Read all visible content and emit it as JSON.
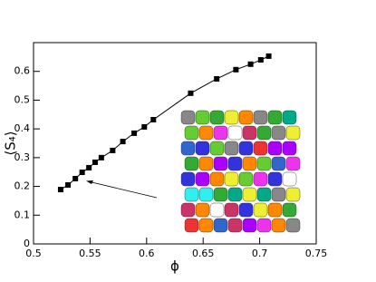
{
  "chart_data": {
    "type": "line",
    "x_label": "ϕ",
    "y_label": "⟨S₄⟩",
    "x": [
      0.524,
      0.5305,
      0.537,
      0.543,
      0.549,
      0.5545,
      0.56,
      0.57,
      0.579,
      0.589,
      0.598,
      0.606,
      0.639,
      0.662,
      0.679,
      0.692,
      0.701,
      0.708
    ],
    "series": [
      {
        "color": "#000000",
        "values": [
          0.189,
          0.205,
          0.227,
          0.249,
          0.265,
          0.284,
          0.3,
          0.325,
          0.356,
          0.385,
          0.407,
          0.432,
          0.524,
          0.574,
          0.606,
          0.625,
          0.64,
          0.653
        ]
      }
    ],
    "xlim": [
      0.5,
      0.75
    ],
    "xticks": [
      0.5,
      0.55,
      0.6,
      0.65,
      0.7,
      0.75
    ],
    "ylim": [
      0,
      0.7
    ],
    "yticks": [
      0,
      0.1,
      0.2,
      0.3,
      0.4,
      0.5,
      0.6
    ]
  }
}
